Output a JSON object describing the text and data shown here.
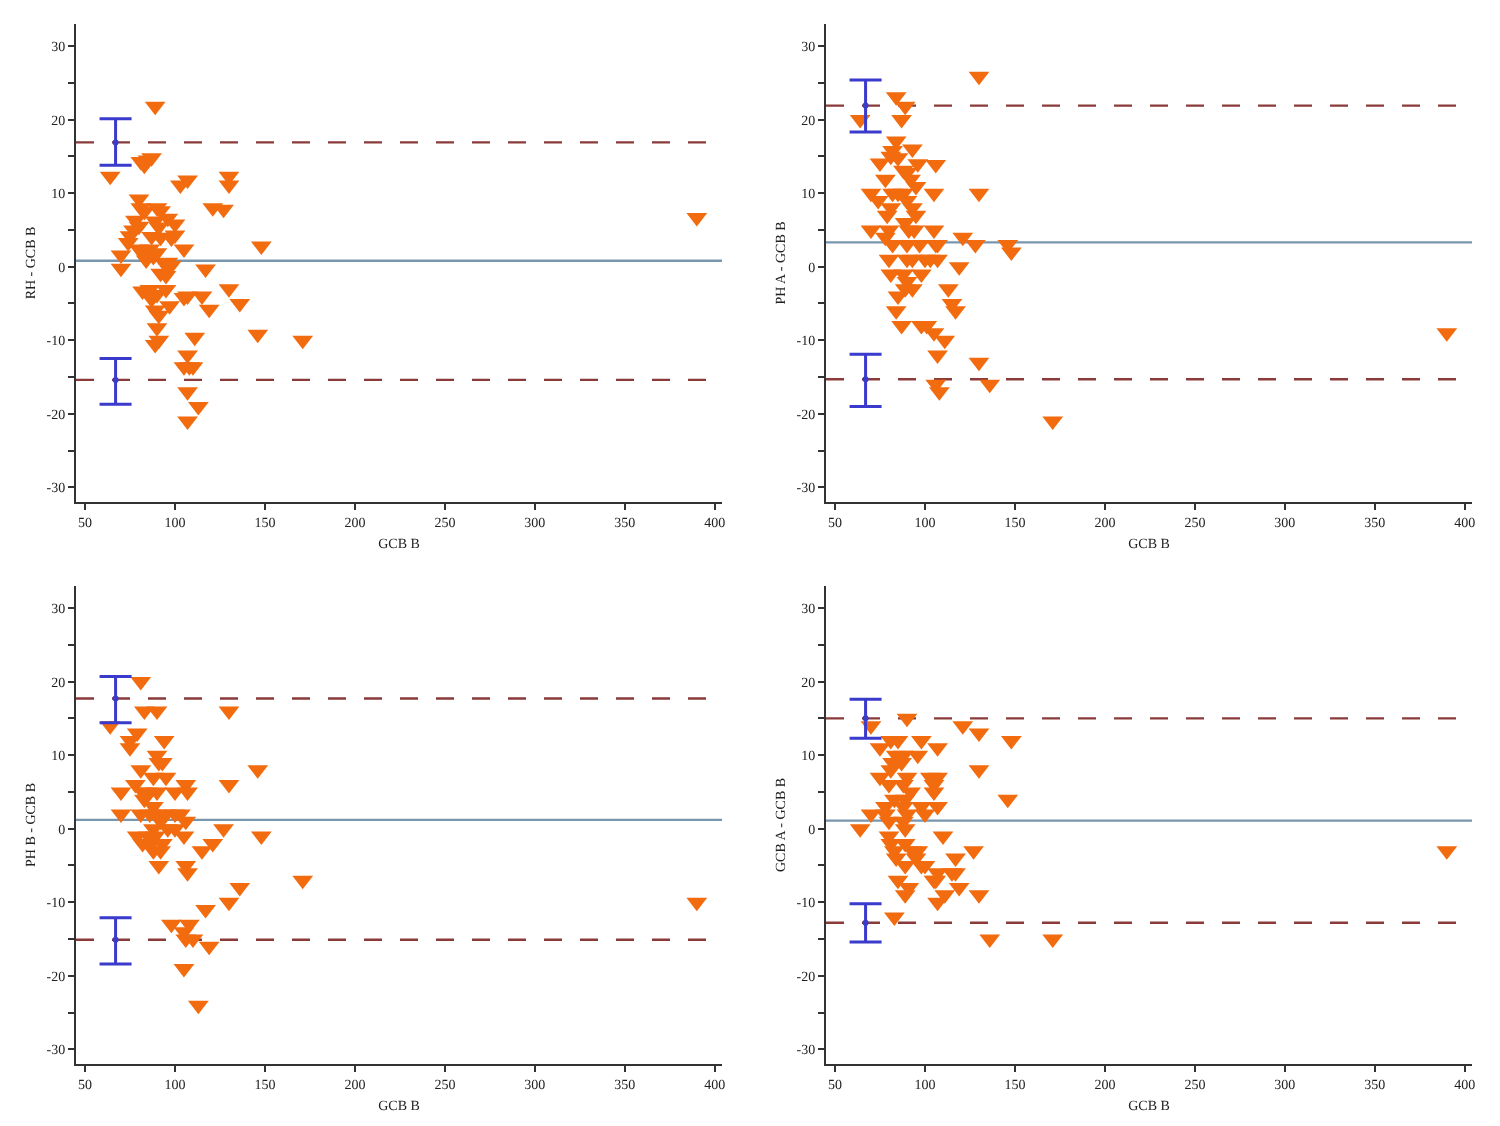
{
  "chart_data": [
    {
      "type": "scatter",
      "xlabel": "GCB B",
      "ylabel": "RH - GCB B",
      "xlim": [
        45,
        404
      ],
      "ylim": [
        -32,
        33
      ],
      "xticks": [
        50,
        100,
        150,
        200,
        250,
        300,
        350,
        400
      ],
      "yticks": [
        -30,
        {
          "value": -25,
          "label": null
        },
        -20,
        {
          "value": -15,
          "label": null
        },
        -10,
        {
          "value": -5,
          "label": null
        },
        0,
        {
          "value": 5,
          "label": null
        },
        10,
        {
          "value": 15,
          "label": null
        },
        20,
        {
          "value": 25,
          "label": null
        },
        30
      ],
      "grid": false,
      "marker": "triangle",
      "series": [
        {
          "color": "#f26b0f",
          "x": [
            89,
            64,
            70,
            70,
            81,
            83,
            85,
            87,
            130,
            130,
            103,
            107,
            121,
            127,
            80,
            81,
            83,
            90,
            92,
            78,
            80,
            77,
            75,
            74,
            89,
            91,
            96,
            100,
            92,
            98,
            100,
            87,
            105,
            148,
            80,
            82,
            86,
            88,
            90,
            84,
            94,
            96,
            98,
            92,
            95,
            117,
            82,
            86,
            90,
            95,
            87,
            105,
            107,
            115,
            130,
            89,
            91,
            97,
            119,
            136,
            90,
            91,
            89,
            111,
            146,
            171,
            107,
            105,
            108,
            110,
            107,
            113,
            107,
            390
          ],
          "values": [
            21.8,
            12.3,
            1.6,
            -0.2,
            14.3,
            13.8,
            14.5,
            14.8,
            12.3,
            11.1,
            11.1,
            11.8,
            8,
            7.8,
            9.2,
            8,
            7.5,
            8,
            7.6,
            6.3,
            5.5,
            5,
            4.2,
            3.3,
            6.2,
            5.4,
            6.6,
            5.8,
            4,
            3.9,
            4.3,
            4.1,
            2.4,
            2.8,
            2.4,
            1.9,
            2.4,
            1.4,
            1.9,
            0.9,
            0.5,
            0.6,
            0.2,
            -0.9,
            -1.2,
            -0.3,
            -3.3,
            -3.1,
            -3.8,
            -3.1,
            -4.4,
            -4.2,
            -4,
            -4,
            -3,
            -5.9,
            -6.6,
            -5.3,
            -5.8,
            -5,
            -8.3,
            -10,
            -10.6,
            -9.6,
            -9.2,
            -10,
            -12,
            -13.6,
            -13.6,
            -13.6,
            -17,
            -19,
            -21,
            6.7
          ]
        },
        {
          "color": "#3a3acc",
          "marker": "none",
          "x": [
            67,
            67
          ],
          "values": [
            16.9,
            -15.4
          ],
          "errors": [
            [
              13.8,
              20.1
            ],
            [
              -18.7,
              -12.5
            ]
          ]
        }
      ],
      "ref_lines": [
        {
          "axis": "y",
          "value": 0.8,
          "color": "#7896ad",
          "line_style": "solid"
        },
        {
          "axis": "y",
          "value": 16.9,
          "color": "#8b3a3a",
          "line_style": "dashed"
        },
        {
          "axis": "y",
          "value": -15.4,
          "color": "#8b3a3a",
          "line_style": "dashed"
        }
      ]
    },
    {
      "type": "scatter",
      "xlabel": "GCB B",
      "ylabel": "PH A - GCB B",
      "xlim": [
        45,
        404
      ],
      "ylim": [
        -32,
        33
      ],
      "xticks": [
        50,
        100,
        150,
        200,
        250,
        300,
        350,
        400
      ],
      "yticks": [
        -30,
        {
          "value": -25,
          "label": null
        },
        -20,
        {
          "value": -15,
          "label": null
        },
        -10,
        {
          "value": -5,
          "label": null
        },
        0,
        {
          "value": 5,
          "label": null
        },
        10,
        {
          "value": 15,
          "label": null
        },
        20,
        {
          "value": 25,
          "label": null
        },
        30
      ],
      "grid": false,
      "marker": "triangle",
      "series": [
        {
          "color": "#f26b0f",
          "x": [
            130,
            84,
            89,
            64,
            87,
            84,
            82,
            81,
            85,
            93,
            75,
            96,
            106,
            88,
            90,
            78,
            92,
            95,
            70,
            82,
            85,
            88,
            105,
            130,
            74,
            90,
            81,
            93,
            79,
            95,
            89,
            91,
            70,
            80,
            94,
            105,
            78,
            121,
            82,
            90,
            97,
            106,
            107,
            128,
            146,
            148,
            80,
            90,
            93,
            100,
            103,
            107,
            119,
            81,
            88,
            90,
            98,
            89,
            93,
            113,
            85,
            115,
            84,
            117,
            87,
            98,
            101,
            105,
            111,
            130,
            107,
            106,
            136,
            108,
            171,
            390
          ],
          "values": [
            25.9,
            23.1,
            21.8,
            20,
            20,
            17.1,
            15.8,
            15,
            14.8,
            16,
            14.1,
            14,
            13.9,
            13.1,
            12.8,
            11.9,
            11.9,
            10.9,
            10,
            10,
            10,
            10,
            10,
            10,
            9,
            9,
            8,
            8,
            7,
            7,
            6,
            5,
            5,
            5,
            5,
            5,
            4,
            4,
            3,
            3,
            3,
            3,
            3,
            3,
            3,
            2,
            1,
            1,
            1,
            1,
            1,
            1,
            0,
            -1,
            -1,
            -2,
            -1,
            -3,
            -3,
            -3,
            -4,
            -5,
            -6,
            -6,
            -8,
            -8,
            -8,
            -9,
            -10,
            -13,
            -12,
            -16,
            -16,
            -17,
            -21,
            -9
          ]
        },
        {
          "color": "#3a3acc",
          "marker": "none",
          "x": [
            67,
            67
          ],
          "values": [
            21.9,
            -15.3
          ],
          "errors": [
            [
              18.3,
              25.4
            ],
            [
              -19,
              -11.9
            ]
          ]
        }
      ],
      "ref_lines": [
        {
          "axis": "y",
          "value": 3.3,
          "color": "#7896ad",
          "line_style": "solid"
        },
        {
          "axis": "y",
          "value": 21.9,
          "color": "#8b3a3a",
          "line_style": "dashed"
        },
        {
          "axis": "y",
          "value": -15.3,
          "color": "#8b3a3a",
          "line_style": "dashed"
        }
      ]
    },
    {
      "type": "scatter",
      "xlabel": "GCB B",
      "ylabel": "PH B - GCB B",
      "xlim": [
        45,
        404
      ],
      "ylim": [
        -32,
        33
      ],
      "xticks": [
        50,
        100,
        150,
        200,
        250,
        300,
        350,
        400
      ],
      "yticks": [
        -30,
        {
          "value": -25,
          "label": null
        },
        -20,
        {
          "value": -15,
          "label": null
        },
        -10,
        {
          "value": -5,
          "label": null
        },
        0,
        {
          "value": 5,
          "label": null
        },
        10,
        {
          "value": 15,
          "label": null
        },
        20,
        {
          "value": 25,
          "label": null
        },
        30
      ],
      "grid": false,
      "marker": "triangle",
      "series": [
        {
          "color": "#f26b0f",
          "x": [
            81,
            83,
            90,
            130,
            64,
            79,
            75,
            94,
            75,
            90,
            91,
            93,
            81,
            146,
            95,
            88,
            78,
            106,
            130,
            70,
            82,
            85,
            90,
            100,
            107,
            83,
            88,
            70,
            81,
            86,
            90,
            95,
            100,
            103,
            106,
            92,
            96,
            88,
            100,
            127,
            79,
            85,
            89,
            105,
            148,
            82,
            87,
            93,
            121,
            88,
            92,
            115,
            91,
            106,
            107,
            136,
            171,
            130,
            117,
            98,
            108,
            105,
            110,
            106,
            119,
            105,
            113,
            390
          ],
          "values": [
            20,
            16,
            16,
            16,
            14,
            13,
            12,
            12,
            11,
            10,
            9,
            9,
            8,
            8,
            7,
            7,
            6,
            6,
            6,
            5,
            5,
            5,
            5,
            5,
            5,
            4,
            3,
            2,
            2,
            2,
            2,
            2,
            2,
            2,
            1,
            1,
            0,
            0,
            0,
            0,
            -1,
            -1,
            -1,
            -1,
            -1,
            -2,
            -2,
            -2,
            -2,
            -3,
            -3,
            -3,
            -5,
            -5,
            -6,
            -8,
            -7,
            -10,
            -11,
            -13,
            -13,
            -14,
            -15,
            -15,
            -16,
            -19,
            -24,
            -10
          ]
        },
        {
          "color": "#3a3acc",
          "marker": "none",
          "x": [
            67,
            67
          ],
          "values": [
            17.7,
            -15.1
          ],
          "errors": [
            [
              14.4,
              20.7
            ],
            [
              -18.4,
              -12.1
            ]
          ]
        }
      ],
      "ref_lines": [
        {
          "axis": "y",
          "value": 1.2,
          "color": "#7896ad",
          "line_style": "solid"
        },
        {
          "axis": "y",
          "value": 17.7,
          "color": "#8b3a3a",
          "line_style": "dashed"
        },
        {
          "axis": "y",
          "value": -15.1,
          "color": "#8b3a3a",
          "line_style": "dashed"
        }
      ]
    },
    {
      "type": "scatter",
      "xlabel": "GCB B",
      "ylabel": "GCB A - GCB B",
      "xlim": [
        45,
        404
      ],
      "ylim": [
        -32,
        33
      ],
      "xticks": [
        50,
        100,
        150,
        200,
        250,
        300,
        350,
        400
      ],
      "yticks": [
        -30,
        {
          "value": -25,
          "label": null
        },
        -20,
        {
          "value": -15,
          "label": null
        },
        -10,
        {
          "value": -5,
          "label": null
        },
        0,
        {
          "value": 5,
          "label": null
        },
        10,
        {
          "value": 15,
          "label": null
        },
        20,
        {
          "value": 25,
          "label": null
        },
        30
      ],
      "grid": false,
      "marker": "triangle",
      "series": [
        {
          "color": "#f26b0f",
          "x": [
            90,
            70,
            121,
            130,
            148,
            81,
            85,
            98,
            75,
            96,
            107,
            84,
            88,
            82,
            87,
            81,
            130,
            75,
            90,
            103,
            107,
            80,
            88,
            105,
            92,
            105,
            83,
            89,
            146,
            78,
            88,
            98,
            107,
            70,
            78,
            90,
            100,
            80,
            88,
            64,
            89,
            80,
            81,
            89,
            110,
            83,
            93,
            96,
            127,
            84,
            95,
            117,
            89,
            98,
            100,
            107,
            115,
            117,
            105,
            106,
            85,
            91,
            119,
            89,
            111,
            130,
            107,
            83,
            136,
            171,
            390
          ],
          "values": [
            15,
            14,
            14,
            13,
            12,
            12,
            12,
            12,
            11,
            10,
            11,
            10,
            10,
            9,
            9,
            8,
            8,
            7,
            7,
            7,
            7,
            6,
            6,
            6,
            5,
            5,
            4,
            4,
            4,
            3,
            3,
            3,
            3,
            2,
            2,
            2,
            2,
            1,
            1,
            0,
            0,
            -1,
            -2,
            -2,
            -1,
            -3,
            -3,
            -3,
            -3,
            -4,
            -4,
            -4,
            -5,
            -5,
            -5,
            -6,
            -6,
            -6,
            -7,
            -7,
            -7,
            -8,
            -8,
            -9,
            -9,
            -9,
            -10,
            -12,
            -15,
            -15,
            -3
          ]
        },
        {
          "color": "#3a3acc",
          "marker": "none",
          "x": [
            67,
            67
          ],
          "values": [
            15,
            -12.8
          ],
          "errors": [
            [
              12.3,
              17.6
            ],
            [
              -15.4,
              -10.2
            ]
          ]
        }
      ],
      "ref_lines": [
        {
          "axis": "y",
          "value": 1.1,
          "color": "#7896ad",
          "line_style": "solid"
        },
        {
          "axis": "y",
          "value": 15,
          "color": "#8b3a3a",
          "line_style": "dashed"
        },
        {
          "axis": "y",
          "value": -12.8,
          "color": "#8b3a3a",
          "line_style": "dashed"
        }
      ]
    }
  ]
}
